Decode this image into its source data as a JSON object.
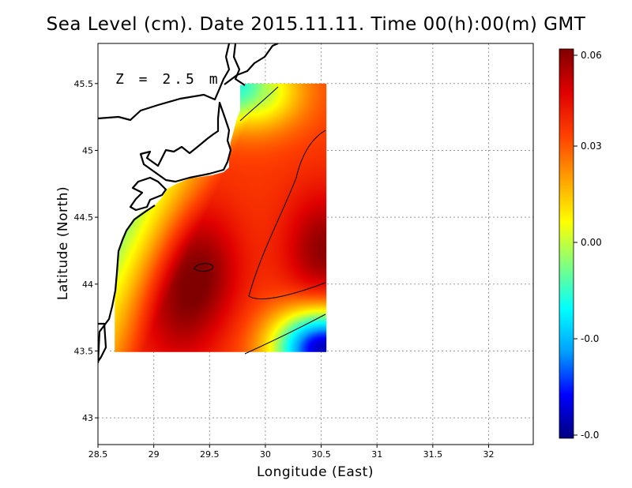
{
  "title": "Sea Level (cm). Date 2015.11.11. Time 00(h):00(m) GMT",
  "annotation": "Z = 2.5 m",
  "chart_data": {
    "type": "heatmap",
    "title": "Sea Level (cm). Date 2015.11.11. Time 00(h):00(m) GMT",
    "xlabel": "Longitude (East)",
    "ylabel": "Latitude (North)",
    "xlim": [
      28.5,
      32.4
    ],
    "ylim": [
      42.8,
      45.8
    ],
    "x_ticks": [
      "28.5",
      "29",
      "29.5",
      "30",
      "30.5",
      "31",
      "31.5",
      "32"
    ],
    "y_ticks": [
      "43",
      "43.5",
      "44",
      "44.5",
      "45",
      "45.5"
    ],
    "grid": true,
    "colorbar": {
      "range": [
        -0.06,
        0.06
      ],
      "tick_labels": [
        "0.06",
        "0.03",
        "0.00",
        "-0.0",
        "-0.0"
      ],
      "colormap": [
        "#000080",
        "#0000ff",
        "#00a0ff",
        "#00ffff",
        "#80ff80",
        "#ffff00",
        "#ffa000",
        "#ff4000",
        "#e00000",
        "#800000"
      ]
    },
    "field_domain": {
      "lon": [
        28.65,
        30.55
      ],
      "lat": [
        43.49,
        45.5
      ]
    },
    "field_centers": [
      {
        "lon": 30.52,
        "lat": 44.25,
        "value": 0.058
      },
      {
        "lon": 29.45,
        "lat": 44.12,
        "value": 0.055
      },
      {
        "lon": 29.2,
        "lat": 43.76,
        "value": 0.05
      }
    ],
    "field_lows": [
      {
        "lon": 30.52,
        "lat": 43.52,
        "value": -0.055
      },
      {
        "lon": 29.88,
        "lat": 45.45,
        "value": -0.005
      }
    ]
  }
}
